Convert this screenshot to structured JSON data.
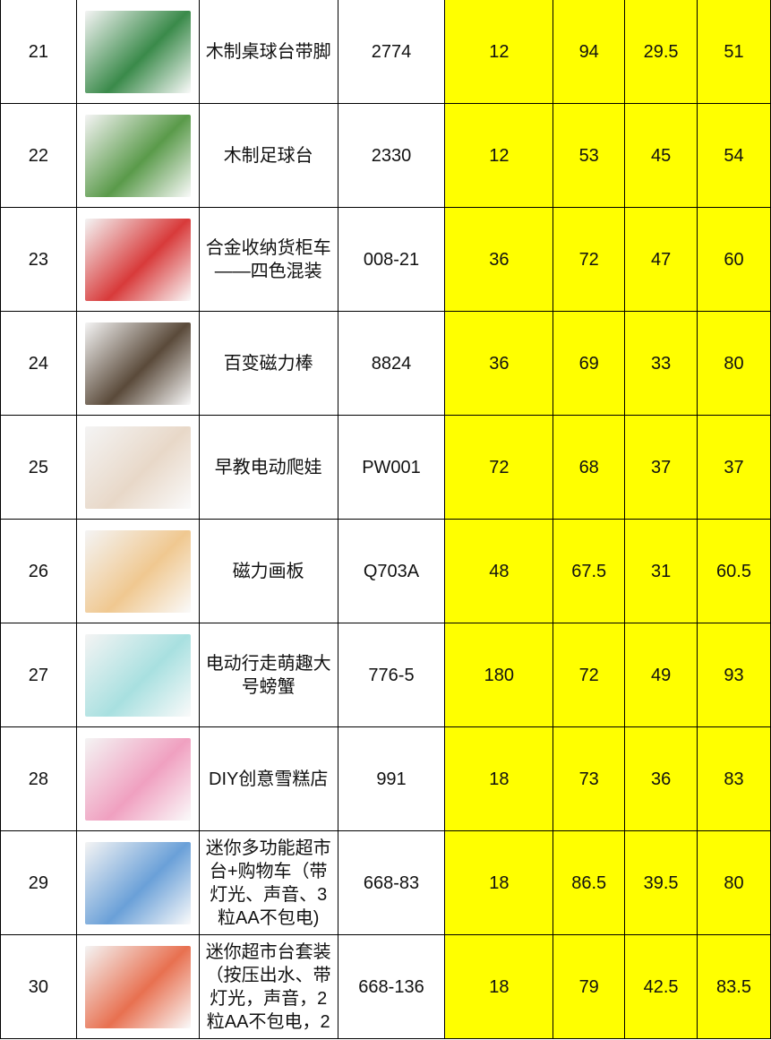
{
  "highlight_color": "#ffff00",
  "rows": [
    {
      "no": "21",
      "name": "木制桌球台带脚",
      "code": "2774",
      "c1": "12",
      "c2": "94",
      "c3": "29.5",
      "c4": "51",
      "thumb": "#3a8a4a"
    },
    {
      "no": "22",
      "name": "木制足球台",
      "code": "2330",
      "c1": "12",
      "c2": "53",
      "c3": "45",
      "c4": "54",
      "thumb": "#5a9a4a"
    },
    {
      "no": "23",
      "name": "合金收纳货柜车——四色混装",
      "code": "008-21",
      "c1": "36",
      "c2": "72",
      "c3": "47",
      "c4": "60",
      "thumb": "#d83a3a"
    },
    {
      "no": "24",
      "name": "百变磁力棒",
      "code": "8824",
      "c1": "36",
      "c2": "69",
      "c3": "33",
      "c4": "80",
      "thumb": "#5a4a3a"
    },
    {
      "no": "25",
      "name": "早教电动爬娃",
      "code": "PW001",
      "c1": "72",
      "c2": "68",
      "c3": "37",
      "c4": "37",
      "thumb": "#e8d8c8"
    },
    {
      "no": "26",
      "name": "磁力画板",
      "code": "Q703A",
      "c1": "48",
      "c2": "67.5",
      "c3": "31",
      "c4": "60.5",
      "thumb": "#f0c890"
    },
    {
      "no": "27",
      "name": "电动行走萌趣大号螃蟹",
      "code": "776-5",
      "c1": "180",
      "c2": "72",
      "c3": "49",
      "c4": "93",
      "thumb": "#a8e0e0"
    },
    {
      "no": "28",
      "name": "DIY创意雪糕店",
      "code": "991",
      "c1": "18",
      "c2": "73",
      "c3": "36",
      "c4": "83",
      "thumb": "#f0a0c0"
    },
    {
      "no": "29",
      "name": "迷你多功能超市台+购物车（带灯光、声音、3粒AA不包电)",
      "code": "668-83",
      "c1": "18",
      "c2": "86.5",
      "c3": "39.5",
      "c4": "80",
      "thumb": "#6aa0d8"
    },
    {
      "no": "30",
      "name": "迷你超市台套装（按压出水、带灯光，声音，2粒AA不包电，2",
      "code": "668-136",
      "c1": "18",
      "c2": "79",
      "c3": "42.5",
      "c4": "83.5",
      "thumb": "#e87050"
    }
  ]
}
